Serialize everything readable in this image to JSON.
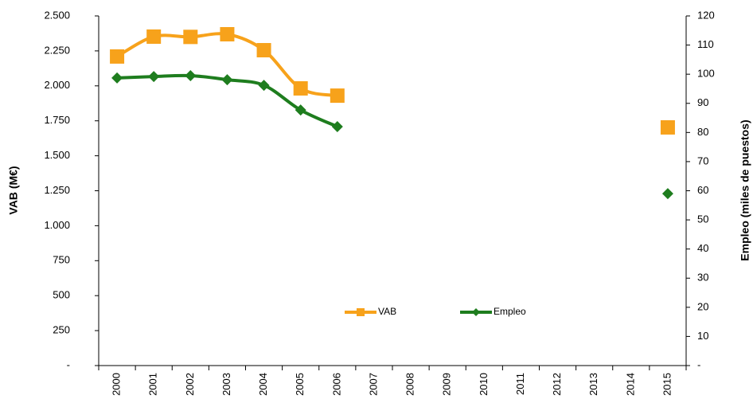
{
  "chart_data": {
    "type": "line",
    "categories": [
      "2000",
      "2001",
      "2002",
      "2003",
      "2004",
      "2005",
      "2006",
      "2007",
      "2008",
      "2009",
      "2010",
      "2011",
      "2012",
      "2013",
      "2014",
      "2015"
    ],
    "series": [
      {
        "name": "VAB",
        "color": "#f7a21b",
        "marker": "square",
        "values": [
          2210,
          2352,
          2350,
          2369,
          2255,
          1982,
          1930,
          null,
          null,
          null,
          null,
          null,
          null,
          null,
          null,
          1703
        ]
      },
      {
        "name": "Empleo",
        "color": "#1e7d1e",
        "marker": "diamond",
        "axis": "y2",
        "values": [
          98.7,
          99.2,
          99.5,
          98.1,
          96.2,
          87.7,
          82.0,
          null,
          null,
          null,
          null,
          null,
          null,
          null,
          null,
          59
        ]
      }
    ],
    "ylabel": "VAB (M€)",
    "y2label": "Empleo (miles de puestos)",
    "ylim": [
      0,
      2500
    ],
    "yticks": [
      {
        "value": 0,
        "label": "-"
      },
      {
        "value": 250,
        "label": "250"
      },
      {
        "value": 500,
        "label": "500"
      },
      {
        "value": 750,
        "label": "750"
      },
      {
        "value": 1000,
        "label": "1.000"
      },
      {
        "value": 1250,
        "label": "1.250"
      },
      {
        "value": 1500,
        "label": "1.500"
      },
      {
        "value": 1750,
        "label": "1.750"
      },
      {
        "value": 2000,
        "label": "2.000"
      },
      {
        "value": 2250,
        "label": "2.250"
      },
      {
        "value": 2500,
        "label": "2.500"
      }
    ],
    "y2lim": [
      0,
      120
    ],
    "y2ticks": [
      {
        "value": 0,
        "label": "-"
      },
      10,
      20,
      30,
      40,
      50,
      60,
      70,
      80,
      90,
      100,
      110,
      120
    ],
    "smooth": true,
    "grid": false
  }
}
